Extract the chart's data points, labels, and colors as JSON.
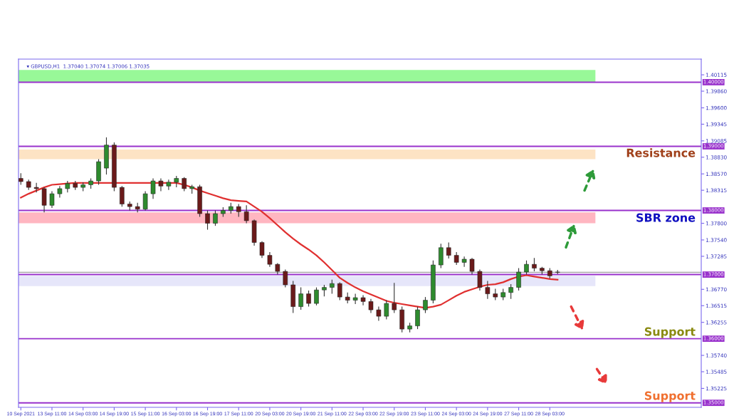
{
  "chart_data": {
    "type": "candlestick",
    "title": "▾ GBPUSD,H1  1.37040 1.37074 1.37006 1.37035",
    "categories": [
      "10 Sep 2021",
      null,
      null,
      null,
      "13 Sep 11:00",
      null,
      null,
      null,
      "14 Sep 03:00",
      null,
      null,
      null,
      "14 Sep 19:00",
      null,
      null,
      null,
      "15 Sep 11:00",
      null,
      null,
      null,
      "16 Sep 03:00",
      null,
      null,
      null,
      "16 Sep 19:00",
      null,
      null,
      null,
      "17 Sep 11:00",
      null,
      null,
      null,
      "20 Sep 03:00",
      null,
      null,
      null,
      "20 Sep 19:00",
      null,
      null,
      null,
      "21 Sep 11:00",
      null,
      null,
      null,
      "22 Sep 03:00",
      null,
      null,
      null,
      "22 Sep 19:00",
      null,
      null,
      null,
      "23 Sep 11:00",
      null,
      null,
      null,
      "24 Sep 03:00",
      null,
      null,
      null,
      "24 Sep 19:00",
      null,
      null,
      null,
      "27 Sep 11:00",
      null,
      null,
      null,
      "28 Sep 03:00",
      null
    ],
    "ohlc": [
      [
        1.385,
        1.3858,
        1.384,
        1.3845
      ],
      [
        1.3845,
        1.3848,
        1.3832,
        1.3836
      ],
      [
        1.3836,
        1.3843,
        1.3828,
        1.3834
      ],
      [
        1.3834,
        1.3836,
        1.3797,
        1.3808
      ],
      [
        1.3808,
        1.383,
        1.3804,
        1.3826
      ],
      [
        1.3826,
        1.3838,
        1.382,
        1.3834
      ],
      [
        1.3834,
        1.3846,
        1.3828,
        1.3842
      ],
      [
        1.3842,
        1.3846,
        1.3832,
        1.3836
      ],
      [
        1.3836,
        1.3844,
        1.383,
        1.384
      ],
      [
        1.384,
        1.385,
        1.3834,
        1.3846
      ],
      [
        1.3846,
        1.388,
        1.384,
        1.3876
      ],
      [
        1.3866,
        1.3914,
        1.3856,
        1.3902
      ],
      [
        1.3902,
        1.3906,
        1.383,
        1.3836
      ],
      [
        1.3836,
        1.3838,
        1.3806,
        1.381
      ],
      [
        1.381,
        1.3814,
        1.38,
        1.3806
      ],
      [
        1.3806,
        1.3812,
        1.3797,
        1.3802
      ],
      [
        1.3802,
        1.383,
        1.38,
        1.3826
      ],
      [
        1.3826,
        1.385,
        1.3818,
        1.3846
      ],
      [
        1.3846,
        1.385,
        1.383,
        1.3838
      ],
      [
        1.3838,
        1.3848,
        1.3832,
        1.3844
      ],
      [
        1.3844,
        1.3854,
        1.3836,
        1.385
      ],
      [
        1.385,
        1.3852,
        1.383,
        1.3834
      ],
      [
        1.3834,
        1.384,
        1.3826,
        1.3837
      ],
      [
        1.3837,
        1.384,
        1.379,
        1.3795
      ],
      [
        1.3795,
        1.38,
        1.377,
        1.378
      ],
      [
        1.378,
        1.38,
        1.3776,
        1.3795
      ],
      [
        1.3795,
        1.3805,
        1.379,
        1.38
      ],
      [
        1.38,
        1.3812,
        1.3795,
        1.3806
      ],
      [
        1.3806,
        1.381,
        1.379,
        1.3798
      ],
      [
        1.3798,
        1.3808,
        1.378,
        1.3784
      ],
      [
        1.3784,
        1.3786,
        1.3745,
        1.375
      ],
      [
        1.375,
        1.3752,
        1.3726,
        1.373
      ],
      [
        1.373,
        1.3735,
        1.3712,
        1.3716
      ],
      [
        1.3716,
        1.3718,
        1.37,
        1.3705
      ],
      [
        1.3705,
        1.3708,
        1.368,
        1.3684
      ],
      [
        1.3684,
        1.369,
        1.364,
        1.365
      ],
      [
        1.365,
        1.368,
        1.3645,
        1.367
      ],
      [
        1.367,
        1.3675,
        1.365,
        1.3655
      ],
      [
        1.3655,
        1.368,
        1.3652,
        1.3676
      ],
      [
        1.3676,
        1.3684,
        1.3666,
        1.368
      ],
      [
        1.368,
        1.3692,
        1.367,
        1.3686
      ],
      [
        1.3686,
        1.3688,
        1.366,
        1.3665
      ],
      [
        1.3665,
        1.3672,
        1.3655,
        1.366
      ],
      [
        1.366,
        1.367,
        1.3654,
        1.3664
      ],
      [
        1.3664,
        1.3668,
        1.3652,
        1.3658
      ],
      [
        1.3658,
        1.3662,
        1.364,
        1.3645
      ],
      [
        1.3645,
        1.365,
        1.3628,
        1.3635
      ],
      [
        1.3635,
        1.366,
        1.363,
        1.3655
      ],
      [
        1.3655,
        1.3687,
        1.364,
        1.3645
      ],
      [
        1.3645,
        1.365,
        1.361,
        1.3615
      ],
      [
        1.3615,
        1.3625,
        1.361,
        1.362
      ],
      [
        1.362,
        1.365,
        1.3615,
        1.3645
      ],
      [
        1.3645,
        1.3665,
        1.364,
        1.366
      ],
      [
        1.366,
        1.3722,
        1.3655,
        1.3715
      ],
      [
        1.3715,
        1.3748,
        1.371,
        1.3742
      ],
      [
        1.3742,
        1.375,
        1.3725,
        1.373
      ],
      [
        1.373,
        1.3735,
        1.3715,
        1.3719
      ],
      [
        1.3719,
        1.3728,
        1.3712,
        1.3724
      ],
      [
        1.3724,
        1.3726,
        1.37,
        1.3705
      ],
      [
        1.3705,
        1.3708,
        1.3675,
        1.368
      ],
      [
        1.368,
        1.369,
        1.3662,
        1.367
      ],
      [
        1.367,
        1.3678,
        1.366,
        1.3665
      ],
      [
        1.3665,
        1.3678,
        1.366,
        1.3672
      ],
      [
        1.3672,
        1.3685,
        1.3662,
        1.368
      ],
      [
        1.368,
        1.371,
        1.3675,
        1.3704
      ],
      [
        1.3704,
        1.3722,
        1.37,
        1.3716
      ],
      [
        1.3716,
        1.3726,
        1.3705,
        1.371
      ],
      [
        1.371,
        1.3712,
        1.37,
        1.3706
      ],
      [
        1.3706,
        1.371,
        1.3694,
        1.3698
      ],
      [
        1.3704,
        1.37074,
        1.37006,
        1.37035
      ]
    ],
    "series": [
      {
        "type": "line",
        "color": "#e03030",
        "values": [
          1.382,
          1.3826,
          1.3831,
          1.3836,
          1.384,
          1.3841,
          1.3842,
          1.3843,
          1.3843,
          1.3843,
          1.3843,
          1.3843,
          1.3843,
          1.3843,
          1.3843,
          1.3843,
          1.3843,
          1.3843,
          1.3843,
          1.3843,
          1.3843,
          1.384,
          1.3836,
          1.3831,
          1.3827,
          1.3823,
          1.3819,
          1.3816,
          1.3815,
          1.3814,
          1.3806,
          1.3798,
          1.3788,
          1.3777,
          1.3766,
          1.3756,
          1.3747,
          1.3739,
          1.373,
          1.3719,
          1.3707,
          1.3695,
          1.3687,
          1.368,
          1.3674,
          1.3669,
          1.3664,
          1.3659,
          1.3656,
          1.3654,
          1.3652,
          1.365,
          1.3648,
          1.365,
          1.3653,
          1.366,
          1.3667,
          1.3673,
          1.3677,
          1.3681,
          1.3684,
          1.3685,
          1.3688,
          1.3693,
          1.3697,
          1.3699,
          1.3697,
          1.3695,
          1.3693,
          1.3692
        ]
      }
    ],
    "ylim": [
      1.3493,
      1.4036
    ],
    "yticks": [
      {
        "value": 1.40115,
        "label": "1.40115"
      },
      {
        "value": 1.3986,
        "label": "1.39860"
      },
      {
        "value": 1.396,
        "label": "1.39600"
      },
      {
        "value": 1.39345,
        "label": "1.39345"
      },
      {
        "value": 1.39085,
        "label": "1.39085"
      },
      {
        "value": 1.3883,
        "label": "1.38830"
      },
      {
        "value": 1.3857,
        "label": "1.38570"
      },
      {
        "value": 1.38315,
        "label": "1.38315"
      },
      {
        "value": 1.378,
        "label": "1.37800"
      },
      {
        "value": 1.3754,
        "label": "1.37540"
      },
      {
        "value": 1.37285,
        "label": "1.37285"
      },
      {
        "value": 1.3677,
        "label": "1.36770"
      },
      {
        "value": 1.36515,
        "label": "1.36515"
      },
      {
        "value": 1.36255,
        "label": "1.36255"
      },
      {
        "value": 1.3574,
        "label": "1.35740"
      },
      {
        "value": 1.35485,
        "label": "1.35485"
      },
      {
        "value": 1.35225,
        "label": "1.35225"
      }
    ],
    "ref_lines": [
      {
        "axis": "y",
        "value": 1.4,
        "label": "1.40000",
        "color": "#9932cc"
      },
      {
        "axis": "y",
        "value": 1.39,
        "label": "1.39000",
        "color": "#9932cc"
      },
      {
        "axis": "y",
        "value": 1.38,
        "label": "1.38000",
        "color": "#9932cc"
      },
      {
        "axis": "y",
        "value": 1.37,
        "label": "1.37000",
        "color": "#9932cc"
      },
      {
        "axis": "y",
        "value": 1.36,
        "label": "1.36000",
        "color": "#9932cc"
      },
      {
        "axis": "y",
        "value": 1.35,
        "label": "1.35000",
        "color": "#9932cc"
      },
      {
        "axis": "y",
        "value": 1.37035,
        "color": "#a0a0a0"
      }
    ],
    "bands": [
      {
        "axis": "y",
        "from": 1.4,
        "to": 1.4019,
        "color": "#98f898"
      },
      {
        "axis": "y",
        "from": 1.388,
        "to": 1.3895,
        "color": "#fde3c4"
      },
      {
        "axis": "y",
        "from": 1.378,
        "to": 1.3797,
        "color": "#ffb6c1"
      },
      {
        "axis": "y",
        "from": 1.3682,
        "to": 1.3698,
        "color": "#e6e6fa"
      }
    ],
    "annotations": [
      "Resistance",
      "SBR zone",
      "Support",
      "Support"
    ],
    "legend": false,
    "grid": false
  }
}
